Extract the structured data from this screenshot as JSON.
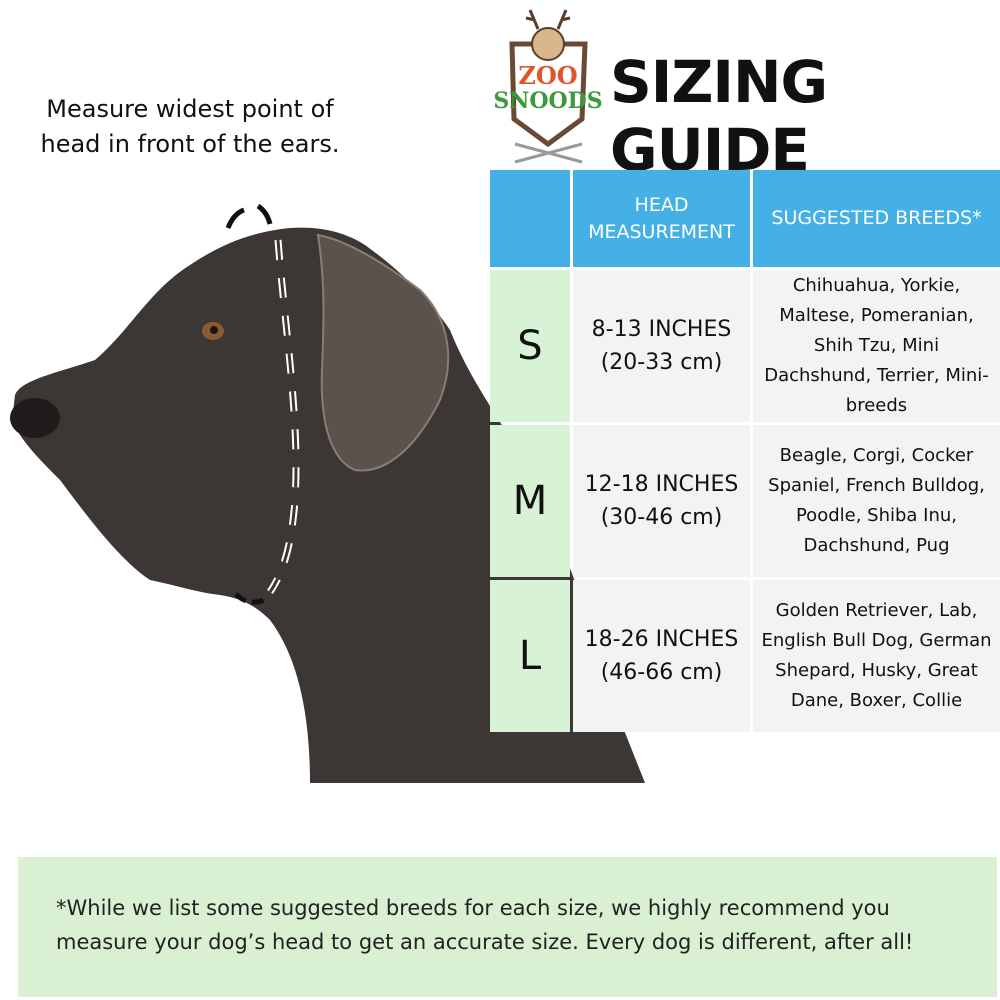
{
  "instruction": "Measure widest point of head in front of the ears.",
  "logo": {
    "text": "ZOO SNOODS"
  },
  "title": "SIZING GUIDE",
  "table": {
    "headers": [
      "",
      "HEAD MEASUREMENT",
      "SUGGESTED BREEDS*"
    ],
    "rows": [
      {
        "size": "S",
        "inches": "8-13 INCHES",
        "cm": "(20-33 cm)",
        "breeds": "Chihuahua, Yorkie, Maltese, Pomeranian, Shih Tzu, Mini Dachshund, Terrier, Mini-breeds"
      },
      {
        "size": "M",
        "inches": "12-18 INCHES",
        "cm": "(30-46 cm)",
        "breeds": "Beagle, Corgi, Cocker Spaniel, French Bulldog, Poodle, Shiba Inu, Dachshund, Pug"
      },
      {
        "size": "L",
        "inches": "18-26 INCHES",
        "cm": "(46-66 cm)",
        "breeds": "Golden Retriever, Lab, English Bull Dog, German Shepard, Husky, Great Dane, Boxer, Collie"
      }
    ]
  },
  "note": "*While we list some suggested breeds for each size, we highly recommend you measure your dog’s head to get an accurate size. Every dog is different, after all!",
  "colors": {
    "header": "#45b0e5",
    "size_column": "#d8f2d5",
    "note_background": "#d9f0d2"
  }
}
